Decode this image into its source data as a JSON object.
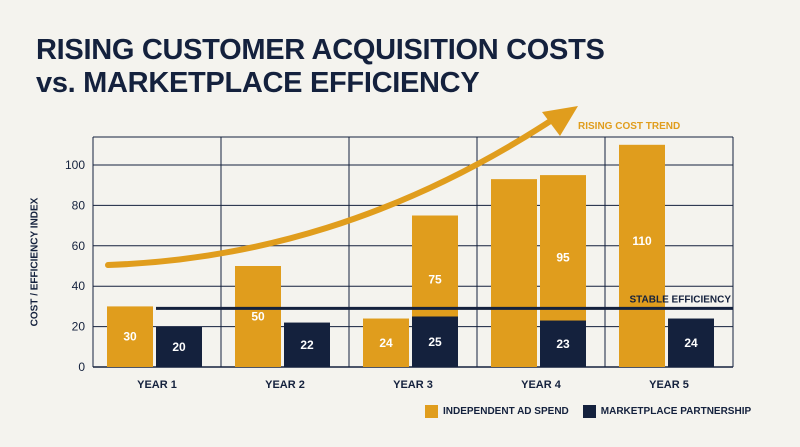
{
  "title_line1": "RISING CUSTOMER ACQUISITION COSTS",
  "title_line2": "vs. MARKETPLACE EFFICIENCY",
  "chart_data": {
    "type": "bar",
    "categories": [
      "YEAR 1",
      "YEAR 2",
      "YEAR 3",
      "YEAR 4",
      "YEAR 5"
    ],
    "series": [
      {
        "name": "INDEPENDENT AD SPEND",
        "color": "#e09d1d",
        "values": [
          30,
          50,
          24,
          93,
          110
        ],
        "labels": [
          "30",
          "50",
          "24",
          "",
          "110"
        ]
      },
      {
        "name": "MARKETPLACE PARTNERSHIP",
        "color": "#14213d",
        "values": [
          20,
          22,
          25,
          23,
          24
        ],
        "labels": [
          "20",
          "22",
          "25",
          "23",
          "24"
        ]
      }
    ],
    "extra_bars": [
      {
        "category": "YEAR 3",
        "position": "between",
        "value": 75,
        "color": "#e09d1d",
        "label": "75"
      },
      {
        "category": "YEAR 4",
        "position": "between",
        "value": 95,
        "color": "#e09d1d",
        "label": "95"
      }
    ],
    "ylabel": "COST / EFFICIENCY INDEX",
    "ylim": [
      0,
      110
    ],
    "yticks": [
      0,
      20,
      40,
      60,
      80,
      100
    ],
    "grid": true,
    "legend_position": "bottom-right",
    "annotations": [
      {
        "text": "RISING COST TREND",
        "type": "arrow",
        "color": "#e09d1d"
      },
      {
        "text": "STABLE EFFICIENCY",
        "type": "line",
        "value": 29,
        "color": "#14213d"
      }
    ]
  }
}
